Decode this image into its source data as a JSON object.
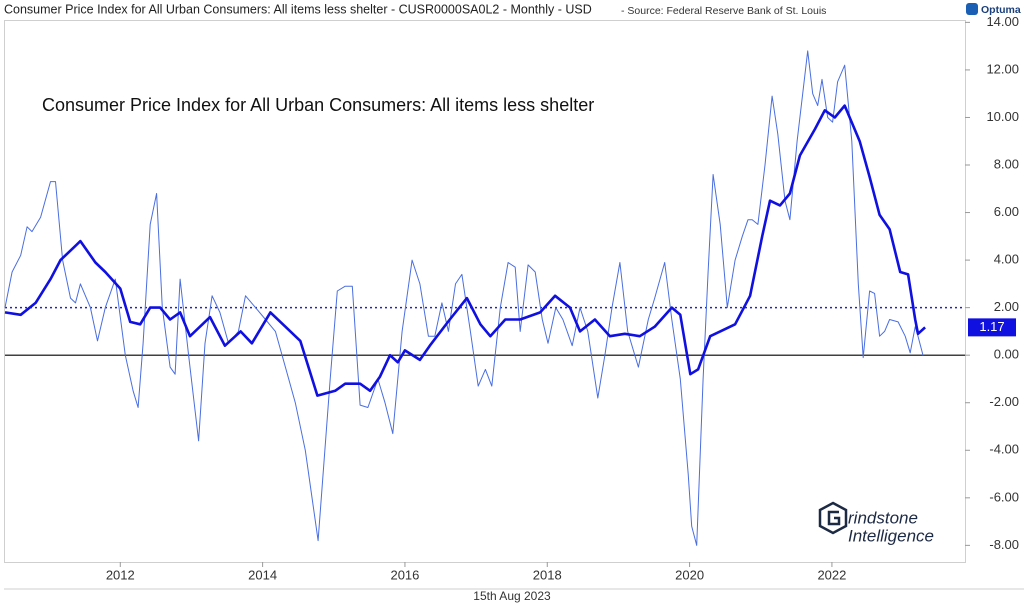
{
  "header": "Consumer Price Index for All Urban Consumers: All items less shelter - CUSR0000SA0L2 - Monthly - USD",
  "source": "- Source: Federal Reserve Bank of St. Louis",
  "brand": "Optuma",
  "date": "15th Aug 2023",
  "watermark": [
    "rindstone",
    "Intelligence"
  ],
  "chart_data": {
    "type": "line",
    "title": "Consumer Price Index for All Urban Consumers: All items less shelter",
    "xlim": [
      2010.38,
      2023.87
    ],
    "xticks": [
      2012,
      2014,
      2016,
      2018,
      2020,
      2022
    ],
    "ylim": [
      -8.7,
      14.1
    ],
    "yticks": [
      {
        "value": -8,
        "label": "-8.00"
      },
      {
        "value": -6,
        "label": "-6.00"
      },
      {
        "value": -4,
        "label": "-4.00"
      },
      {
        "value": -2,
        "label": "-2.00"
      },
      {
        "value": 0,
        "label": "0.00"
      },
      {
        "value": 2,
        "label": "2.00"
      },
      {
        "value": 4,
        "label": "4.00"
      },
      {
        "value": 6,
        "label": "6.00"
      },
      {
        "value": 8,
        "label": "8.00"
      },
      {
        "value": 10,
        "label": "10.00"
      },
      {
        "value": 12,
        "label": "12.00"
      },
      {
        "value": 14,
        "label": "14.00"
      }
    ],
    "hlines": [
      {
        "value": 2,
        "color": "#2222cc",
        "style": "dotted"
      },
      {
        "value": 0,
        "color": "#000000",
        "style": "solid"
      }
    ],
    "series": [
      {
        "color": "#4a6ee0",
        "width": 1,
        "x": [
          2010.38,
          2010.48,
          2010.6,
          2010.69,
          2010.76,
          2010.88,
          2011.02,
          2011.09,
          2011.19,
          2011.3,
          2011.37,
          2011.44,
          2011.58,
          2011.68,
          2011.79,
          2011.93,
          2012.07,
          2012.18,
          2012.25,
          2012.32,
          2012.42,
          2012.51,
          2012.59,
          2012.7,
          2012.77,
          2012.84,
          2012.96,
          2013.1,
          2013.19,
          2013.29,
          2013.4,
          2013.52,
          2013.66,
          2013.76,
          2013.9,
          2014.04,
          2014.18,
          2014.32,
          2014.46,
          2014.6,
          2014.78,
          2014.95,
          2015.05,
          2015.16,
          2015.26,
          2015.37,
          2015.48,
          2015.62,
          2015.72,
          2015.83,
          2015.96,
          2016.1,
          2016.21,
          2016.33,
          2016.42,
          2016.52,
          2016.61,
          2016.71,
          2016.8,
          2016.92,
          2017.03,
          2017.13,
          2017.22,
          2017.34,
          2017.45,
          2017.55,
          2017.62,
          2017.73,
          2017.83,
          2017.93,
          2018.01,
          2018.12,
          2018.22,
          2018.35,
          2018.46,
          2018.57,
          2018.71,
          2018.81,
          2018.91,
          2019.02,
          2019.13,
          2019.28,
          2019.42,
          2019.51,
          2019.65,
          2019.75,
          2019.87,
          2019.98,
          2020.03,
          2020.1,
          2020.19,
          2020.26,
          2020.33,
          2020.43,
          2020.53,
          2020.64,
          2020.74,
          2020.82,
          2020.88,
          2020.96,
          2021.06,
          2021.16,
          2021.24,
          2021.34,
          2021.41,
          2021.51,
          2021.59,
          2021.66,
          2021.73,
          2021.8,
          2021.86,
          2021.94,
          2022.01,
          2022.08,
          2022.18,
          2022.28,
          2022.37,
          2022.44,
          2022.53,
          2022.6,
          2022.67,
          2022.74,
          2022.81,
          2022.93,
          2023.03,
          2023.1,
          2023.17,
          2023.21,
          2023.28
        ],
        "values": [
          2.0,
          3.5,
          4.2,
          5.4,
          5.2,
          5.8,
          7.3,
          7.3,
          4.0,
          2.4,
          2.2,
          3.0,
          2.0,
          0.6,
          2.0,
          3.2,
          0.0,
          -1.5,
          -2.2,
          0.5,
          5.5,
          6.8,
          2.0,
          -0.5,
          -0.8,
          3.2,
          0.0,
          -3.6,
          0.5,
          2.5,
          1.8,
          0.5,
          1.0,
          2.5,
          2.0,
          1.5,
          1.0,
          -0.5,
          -2.0,
          -4.0,
          -7.8,
          -1.0,
          2.7,
          2.9,
          2.9,
          -2.1,
          -2.2,
          -1.0,
          -2.0,
          -3.3,
          1.0,
          4.0,
          3.0,
          0.8,
          0.8,
          2.2,
          1.0,
          3.0,
          3.4,
          1.0,
          -1.3,
          -0.6,
          -1.3,
          2.0,
          3.9,
          3.7,
          1.0,
          3.8,
          3.5,
          1.5,
          0.5,
          2.0,
          1.5,
          0.4,
          2.0,
          1.0,
          -1.8,
          0.0,
          2.0,
          3.9,
          1.0,
          -0.5,
          1.5,
          2.4,
          3.9,
          1.5,
          -1.0,
          -5.0,
          -7.2,
          -8.0,
          -1.0,
          3.5,
          7.6,
          5.5,
          2.0,
          4.0,
          5.0,
          5.7,
          5.7,
          5.5,
          8.0,
          10.9,
          9.3,
          6.5,
          5.7,
          9.0,
          11.0,
          12.8,
          11.0,
          10.5,
          11.6,
          10.0,
          9.8,
          11.5,
          12.2,
          9.0,
          3.0,
          -0.1,
          2.7,
          2.6,
          0.8,
          1.0,
          1.5,
          1.4,
          0.8,
          0.1,
          1.2,
          0.8,
          0.0
        ]
      },
      {
        "color": "#1010e0",
        "width": 2.6,
        "x": [
          2010.38,
          2010.6,
          2010.81,
          2011.02,
          2011.16,
          2011.37,
          2011.44,
          2011.65,
          2011.79,
          2012.0,
          2012.14,
          2012.28,
          2012.42,
          2012.56,
          2012.7,
          2012.84,
          2012.98,
          2013.26,
          2013.47,
          2013.69,
          2013.85,
          2014.11,
          2014.32,
          2014.53,
          2014.77,
          2015.02,
          2015.16,
          2015.37,
          2015.51,
          2015.65,
          2015.79,
          2015.9,
          2016.0,
          2016.21,
          2016.35,
          2016.63,
          2016.87,
          2017.06,
          2017.2,
          2017.41,
          2017.62,
          2017.9,
          2018.11,
          2018.32,
          2018.46,
          2018.67,
          2018.88,
          2019.09,
          2019.3,
          2019.51,
          2019.75,
          2019.87,
          2020.01,
          2020.12,
          2020.29,
          2020.43,
          2020.64,
          2020.85,
          2021.02,
          2021.13,
          2021.27,
          2021.41,
          2021.55,
          2021.76,
          2021.9,
          2022.04,
          2022.18,
          2022.39,
          2022.53,
          2022.67,
          2022.81,
          2022.96,
          2023.07,
          2023.17,
          2023.21,
          2023.31
        ],
        "values": [
          1.8,
          1.7,
          2.2,
          3.2,
          4.0,
          4.6,
          4.8,
          3.9,
          3.5,
          2.8,
          1.4,
          1.3,
          2.0,
          2.0,
          1.5,
          1.8,
          0.8,
          1.6,
          0.4,
          1.0,
          0.5,
          1.8,
          1.2,
          0.6,
          -1.7,
          -1.5,
          -1.2,
          -1.2,
          -1.5,
          -0.9,
          0.0,
          -0.3,
          0.2,
          -0.2,
          0.4,
          1.5,
          2.4,
          1.3,
          0.8,
          1.5,
          1.5,
          1.8,
          2.5,
          2.0,
          1.0,
          1.5,
          0.8,
          0.9,
          0.8,
          1.2,
          2.0,
          1.7,
          -0.8,
          -0.6,
          0.8,
          1.0,
          1.3,
          2.5,
          5.0,
          6.5,
          6.3,
          6.8,
          8.4,
          9.5,
          10.3,
          10.0,
          10.5,
          9.0,
          7.5,
          5.9,
          5.3,
          3.5,
          3.4,
          1.5,
          0.9,
          1.17
        ]
      }
    ]
  }
}
